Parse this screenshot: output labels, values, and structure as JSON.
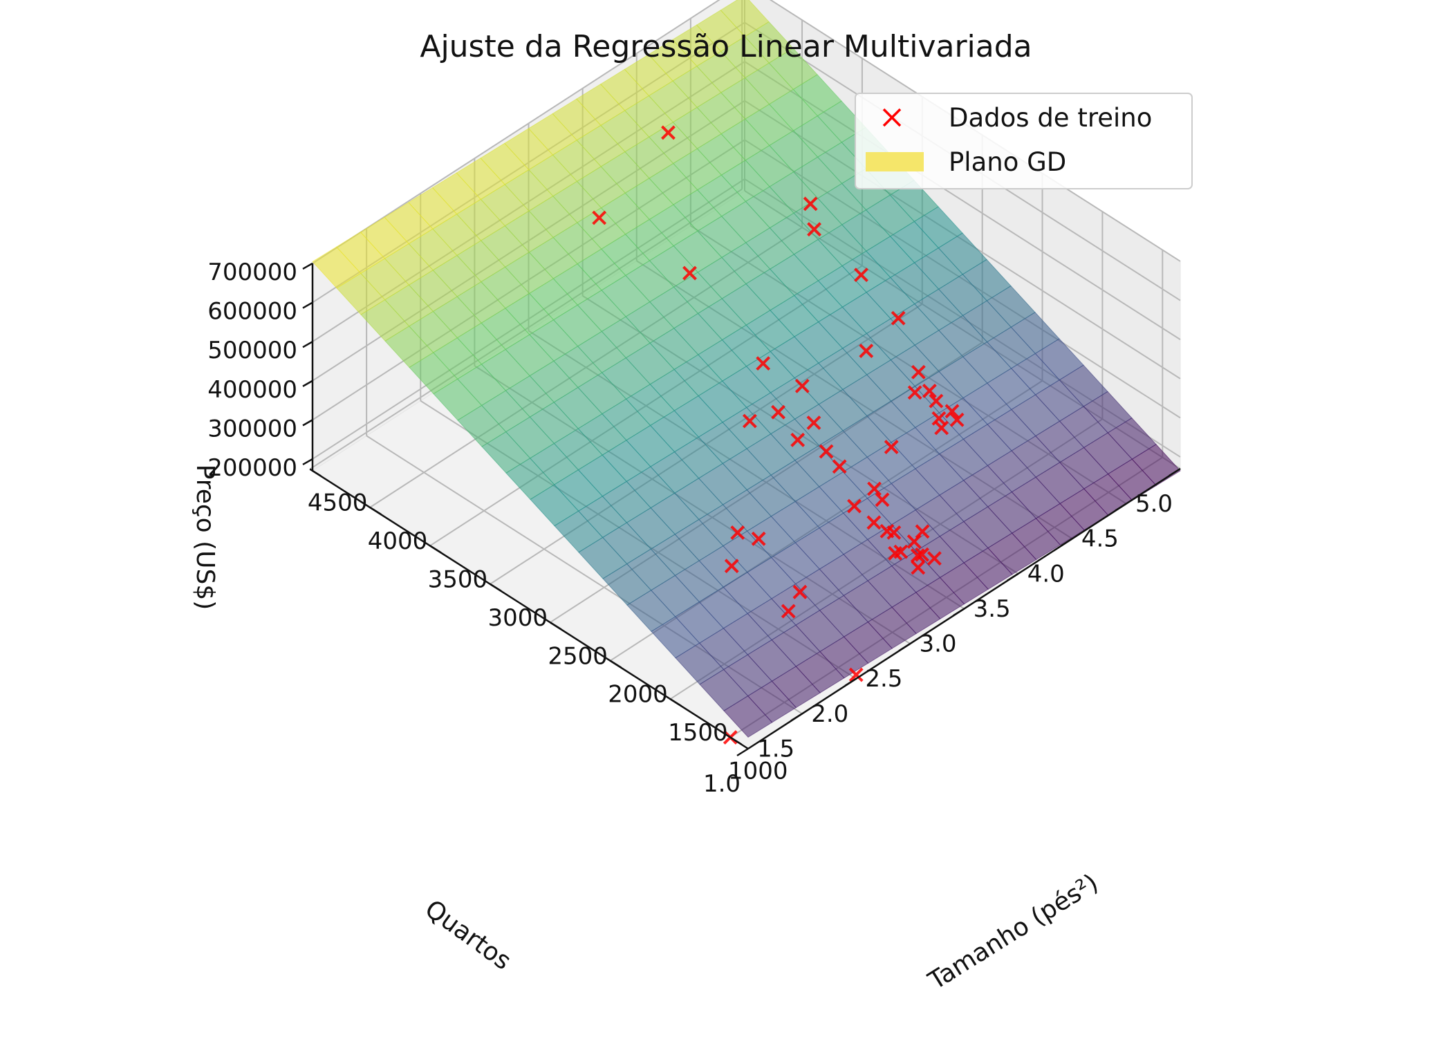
{
  "chart_data": {
    "type": "scatter",
    "title": "Ajuste da Regressão Linear Multivariada",
    "xlabel": "Tamanho (pés²)",
    "ylabel": "Quartos",
    "zlabel": "Preço (US$)",
    "xlim": [
      852,
      4478
    ],
    "ylim": [
      1,
      5
    ],
    "zlim": [
      169900,
      699900
    ],
    "xticks": [
      "1000",
      "1500",
      "2000",
      "2500",
      "3000",
      "3500",
      "4000",
      "4500"
    ],
    "yticks": [
      "1.0",
      "1.5",
      "2.0",
      "2.5",
      "3.0",
      "3.5",
      "4.0",
      "4.5",
      "5.0"
    ],
    "zticks": [
      "200000",
      "300000",
      "400000",
      "500000",
      "600000",
      "700000"
    ],
    "grid": true,
    "legend": {
      "placement": "top-right",
      "entries": [
        "Dados de treino",
        "Plano GD"
      ]
    },
    "colors": {
      "points": "#ff0000",
      "legend_surface": "#f5e66a",
      "surface_low": "#440154",
      "surface_mid": "#21918c",
      "surface_high": "#fde725"
    },
    "series": [
      {
        "name": "Dados de treino",
        "type": "scatter",
        "points": [
          [
            2104,
            3,
            399900
          ],
          [
            1600,
            3,
            329900
          ],
          [
            2400,
            3,
            369000
          ],
          [
            1416,
            2,
            232000
          ],
          [
            3000,
            4,
            539900
          ],
          [
            1985,
            4,
            299900
          ],
          [
            1534,
            3,
            314900
          ],
          [
            1427,
            3,
            198999
          ],
          [
            1380,
            3,
            212000
          ],
          [
            1494,
            3,
            242500
          ],
          [
            1940,
            4,
            239999
          ],
          [
            2000,
            3,
            347000
          ],
          [
            1890,
            3,
            329999
          ],
          [
            4478,
            5,
            699900
          ],
          [
            1268,
            3,
            259900
          ],
          [
            2300,
            4,
            449900
          ],
          [
            1320,
            2,
            299900
          ],
          [
            1236,
            3,
            199900
          ],
          [
            2609,
            4,
            499998
          ],
          [
            3031,
            4,
            599000
          ],
          [
            1767,
            3,
            252900
          ],
          [
            1888,
            2,
            255000
          ],
          [
            1604,
            3,
            242900
          ],
          [
            1962,
            4,
            259900
          ],
          [
            3890,
            3,
            573900
          ],
          [
            1100,
            3,
            249900
          ],
          [
            1458,
            3,
            464500
          ],
          [
            2526,
            3,
            469000
          ],
          [
            2200,
            3,
            475000
          ],
          [
            2637,
            3,
            299900
          ],
          [
            1839,
            2,
            349900
          ],
          [
            1000,
            1,
            169900
          ],
          [
            2040,
            4,
            314900
          ],
          [
            3137,
            3,
            579900
          ],
          [
            1811,
            4,
            285900
          ],
          [
            1437,
            3,
            249900
          ],
          [
            1239,
            3,
            229900
          ],
          [
            2132,
            4,
            345000
          ],
          [
            4215,
            4,
            549000
          ],
          [
            2162,
            4,
            287000
          ],
          [
            1664,
            2,
            368500
          ],
          [
            2238,
            3,
            329900
          ],
          [
            2567,
            4,
            314000
          ],
          [
            1200,
            3,
            299000
          ],
          [
            852,
            2,
            179900
          ],
          [
            1852,
            4,
            299900
          ],
          [
            1203,
            3,
            239500
          ]
        ]
      },
      {
        "name": "Plano GD",
        "type": "surface",
        "coef": {
          "intercept": 89598,
          "size": 139.21,
          "bedrooms": -8738
        }
      }
    ]
  }
}
